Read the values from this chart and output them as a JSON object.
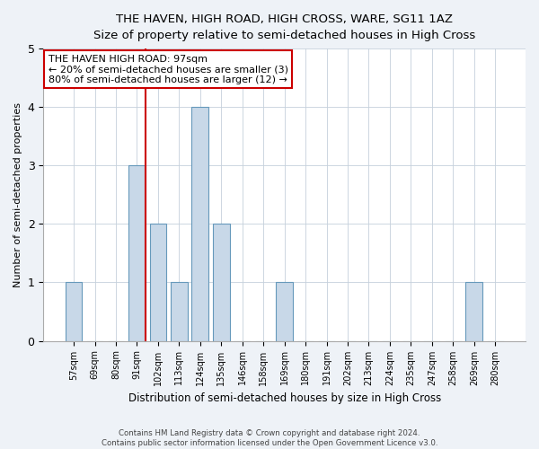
{
  "title1": "THE HAVEN, HIGH ROAD, HIGH CROSS, WARE, SG11 1AZ",
  "title2": "Size of property relative to semi-detached houses in High Cross",
  "xlabel": "Distribution of semi-detached houses by size in High Cross",
  "ylabel": "Number of semi-detached properties",
  "categories": [
    "57sqm",
    "69sqm",
    "80sqm",
    "91sqm",
    "102sqm",
    "113sqm",
    "124sqm",
    "135sqm",
    "146sqm",
    "158sqm",
    "169sqm",
    "180sqm",
    "191sqm",
    "202sqm",
    "213sqm",
    "224sqm",
    "235sqm",
    "247sqm",
    "258sqm",
    "269sqm",
    "280sqm"
  ],
  "values": [
    1,
    0,
    0,
    3,
    2,
    1,
    4,
    2,
    0,
    0,
    1,
    0,
    0,
    0,
    0,
    0,
    0,
    0,
    0,
    1,
    0
  ],
  "bar_color": "#c8d8e8",
  "bar_edgecolor": "#6699bb",
  "highlight_index": 3,
  "highlight_line_color": "#cc0000",
  "annotation_text": "THE HAVEN HIGH ROAD: 97sqm\n← 20% of semi-detached houses are smaller (3)\n80% of semi-detached houses are larger (12) →",
  "annotation_box_edgecolor": "#cc0000",
  "ylim": [
    0,
    5
  ],
  "yticks": [
    0,
    1,
    2,
    3,
    4,
    5
  ],
  "footer1": "Contains HM Land Registry data © Crown copyright and database right 2024.",
  "footer2": "Contains public sector information licensed under the Open Government Licence v3.0.",
  "bg_color": "#eef2f7",
  "plot_bg_color": "#ffffff",
  "grid_color": "#c5d0dc"
}
